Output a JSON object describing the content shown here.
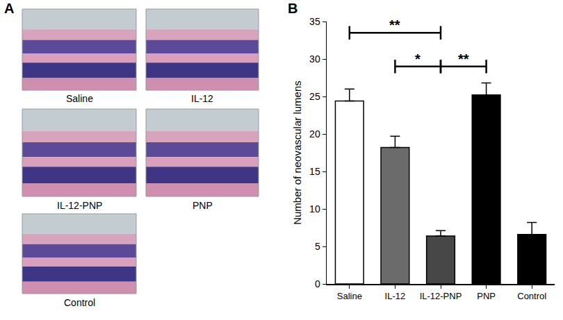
{
  "panel_labels": [
    "A",
    "B"
  ],
  "images": {
    "captions": [
      "Saline",
      "IL-12",
      "IL-12-PNP",
      "PNP",
      "Control"
    ]
  },
  "chart_data": {
    "type": "bar",
    "y_label": "Number of neovascular lumens",
    "categories": [
      "Saline",
      "IL-12",
      "IL-12-PNP",
      "PNP",
      "Control"
    ],
    "values": [
      24.4,
      18.2,
      6.4,
      25.2,
      6.6
    ],
    "errors": [
      1.6,
      1.5,
      0.7,
      1.6,
      1.6
    ],
    "colors": [
      "#ffffff",
      "#6b6b6b",
      "#474747",
      "#000000",
      "#000000"
    ],
    "ylim": [
      0,
      35
    ],
    "yticks": [
      0,
      5,
      10,
      15,
      20,
      25,
      30,
      35
    ],
    "grid": false,
    "annotations": [
      {
        "from": "Saline",
        "to": "IL-12-PNP",
        "y": 33.5,
        "text": "**"
      },
      {
        "from": "IL-12",
        "to": "IL-12-PNP",
        "y": 29,
        "text": "*"
      },
      {
        "from": "IL-12-PNP",
        "to": "PNP",
        "y": 29,
        "text": "**"
      }
    ]
  }
}
